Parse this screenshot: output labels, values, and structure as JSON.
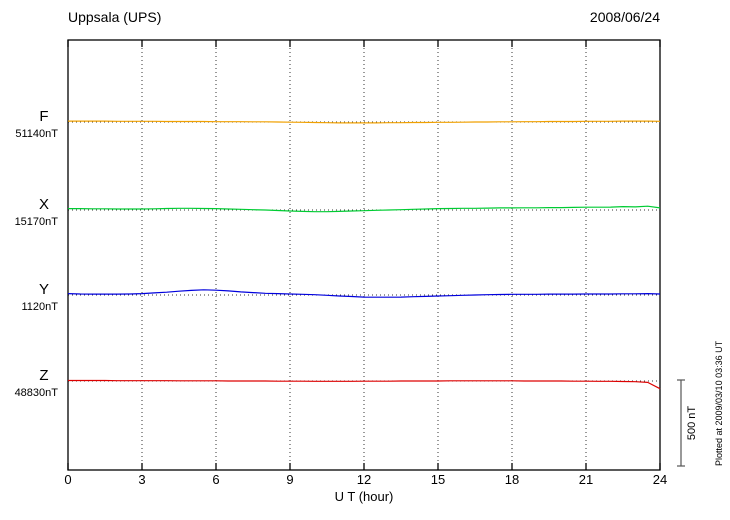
{
  "header": {
    "station": "Uppsala (UPS)",
    "date": "2008/06/24"
  },
  "chart_data": {
    "type": "line",
    "title": "Uppsala (UPS)",
    "date": "2008/06/24",
    "xlabel": "U T (hour)",
    "xlim": [
      0,
      24
    ],
    "x_ticks": [
      0,
      3,
      6,
      9,
      12,
      15,
      18,
      21,
      24
    ],
    "x_start": 0,
    "x_step": 0.5,
    "grid": "dotted vertical lines at every 3 hours, dotted horizontal baseline per trace",
    "scale_bar": {
      "label": "500 nT",
      "nT": 500
    },
    "footnote": "Plotted at 2009/03/10 03:36 UT",
    "series": [
      {
        "name": "F",
        "baseline_label": "51140nT",
        "baseline_nT": 51140,
        "color": "#f0a000",
        "values_nT_offset": [
          5,
          5,
          5,
          5,
          4,
          4,
          4,
          4,
          3,
          3,
          3,
          3,
          2,
          2,
          2,
          1,
          1,
          0,
          -1,
          -2,
          -3,
          -4,
          -5,
          -5,
          -5,
          -5,
          -4,
          -4,
          -3,
          -3,
          -2,
          -2,
          -1,
          0,
          0,
          1,
          1,
          2,
          2,
          3,
          3,
          3,
          4,
          4,
          4,
          5,
          5,
          5,
          4
        ]
      },
      {
        "name": "X",
        "baseline_label": "15170nT",
        "baseline_nT": 15170,
        "color": "#00cc33",
        "values_nT_offset": [
          8,
          8,
          7,
          7,
          6,
          6,
          6,
          7,
          9,
          10,
          10,
          9,
          8,
          6,
          4,
          2,
          0,
          -3,
          -6,
          -8,
          -10,
          -10,
          -8,
          -6,
          -4,
          -2,
          0,
          2,
          4,
          6,
          8,
          9,
          10,
          10,
          11,
          12,
          12,
          13,
          13,
          14,
          14,
          15,
          16,
          16,
          17,
          20,
          18,
          22,
          12
        ]
      },
      {
        "name": "Y",
        "baseline_label": "1120nT",
        "baseline_nT": 1120,
        "color": "#0000dd",
        "values_nT_offset": [
          8,
          6,
          5,
          5,
          5,
          6,
          8,
          12,
          16,
          22,
          27,
          30,
          28,
          24,
          18,
          14,
          10,
          8,
          6,
          4,
          2,
          -2,
          -6,
          -9,
          -12,
          -13,
          -13,
          -12,
          -10,
          -8,
          -6,
          -4,
          -2,
          0,
          2,
          3,
          4,
          4,
          4,
          5,
          5,
          5,
          6,
          6,
          6,
          7,
          7,
          8,
          6
        ]
      },
      {
        "name": "Z",
        "baseline_label": "48830nT",
        "baseline_nT": 48830,
        "color": "#dd0000",
        "values_nT_offset": [
          3,
          3,
          3,
          3,
          2,
          2,
          2,
          2,
          2,
          1,
          1,
          1,
          1,
          0,
          0,
          0,
          0,
          -1,
          -1,
          -1,
          -2,
          -2,
          -2,
          -2,
          -1,
          -1,
          -1,
          0,
          0,
          0,
          0,
          1,
          1,
          1,
          1,
          1,
          1,
          0,
          0,
          0,
          0,
          -1,
          -1,
          -2,
          -2,
          -3,
          -4,
          -8,
          -45
        ]
      }
    ]
  }
}
